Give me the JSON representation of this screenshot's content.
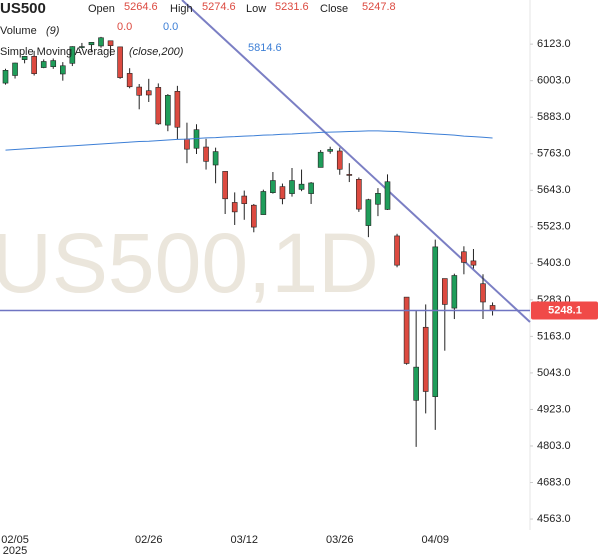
{
  "header": {
    "symbol": "US500",
    "labels": [
      "Open",
      "High",
      "Low",
      "Close"
    ],
    "volume": {
      "label": "Volume",
      "params": "(9)",
      "values": [
        "0.0",
        "0.0"
      ]
    },
    "sma": {
      "label": "Simple Moving Average",
      "params": "(close,200)"
    },
    "watermark": "US500,1D"
  },
  "chart_data": {
    "type": "candlestick",
    "categories": [
      null,
      "02/05",
      null,
      null,
      null,
      null,
      null,
      null,
      null,
      null,
      null,
      null,
      null,
      null,
      null,
      "02/26",
      null,
      null,
      null,
      null,
      null,
      null,
      null,
      null,
      null,
      "03/12",
      null,
      null,
      null,
      null,
      null,
      null,
      null,
      null,
      null,
      "03/26",
      null,
      null,
      null,
      null,
      null,
      null,
      null,
      null,
      null,
      "04/09",
      null,
      null,
      null,
      null,
      null,
      null
    ],
    "year_label": "2025",
    "open": [
      5995,
      6020,
      6072,
      6083,
      6046,
      6049,
      6025,
      6060,
      6115,
      6121,
      6117,
      6134,
      6114,
      6027,
      5982,
      5970,
      5981,
      5857,
      5968,
      5811,
      5781,
      5785,
      5726,
      5705,
      5603,
      5624,
      5594,
      5563,
      5635,
      5655,
      5632,
      5646,
      5632,
      5718,
      5771,
      5772,
      5695,
      5679,
      5527,
      5597,
      5580,
      5493,
      5292,
      4953,
      5193,
      4965,
      5353,
      5256,
      5441,
      5411,
      5336,
      5264.6
    ],
    "high": [
      6042,
      6062,
      6084,
      6101,
      6073,
      6076,
      6064,
      6116,
      6127,
      6129,
      6147,
      6134,
      6114,
      6044,
      5992,
      6009,
      5994,
      5959,
      5986,
      5865,
      5860,
      5812,
      5783,
      5705,
      5636,
      5642,
      5598,
      5645,
      5703,
      5665,
      5716,
      5711,
      5670,
      5775,
      5786,
      5783,
      5732,
      5685,
      5615,
      5650,
      5695,
      5500,
      5292,
      5247,
      5268,
      5481,
      5353,
      5369,
      5459,
      5450,
      5367,
      5274.6
    ],
    "low": [
      5990,
      6010,
      6060,
      6020,
      6044,
      6042,
      6003,
      6051,
      6107,
      6099,
      6111,
      6084,
      6009,
      5978,
      5909,
      5933,
      5858,
      5837,
      5810,
      5732,
      5762,
      5711,
      5666,
      5565,
      5529,
      5546,
      5505,
      5563,
      5632,
      5597,
      5622,
      5640,
      5598,
      5718,
      5763,
      5694,
      5670,
      5572,
      5489,
      5558,
      5578,
      5390,
      5070,
      4800,
      4910,
      4856,
      5116,
      5220,
      5367,
      5386,
      5220,
      5231.6
    ],
    "close": [
      6037,
      6061,
      6083,
      6026,
      6066,
      6069,
      6052,
      6115,
      6115,
      6129,
      6144,
      6118,
      6013,
      5983,
      5955,
      5956,
      5861,
      5955,
      5850,
      5778,
      5842,
      5738,
      5770,
      5615,
      5572,
      5599,
      5522,
      5639,
      5675,
      5615,
      5675,
      5663,
      5667,
      5768,
      5777,
      5712,
      5693,
      5581,
      5612,
      5633,
      5671,
      5397,
      5074,
      5062,
      4982,
      5457,
      5268,
      5363,
      5406,
      5397,
      5276,
      5247.8
    ],
    "up_color": "#1f9d5a",
    "down_color": "#dc4a40",
    "overlay": {
      "color": "#3d7fd6",
      "values": [
        5775,
        5777,
        5779,
        5781,
        5783,
        5785,
        5787,
        5789,
        5791,
        5793,
        5795,
        5797,
        5799,
        5801,
        5803,
        5804,
        5806,
        5808,
        5810,
        5811,
        5813,
        5815,
        5816,
        5818,
        5819,
        5821,
        5822,
        5824,
        5825,
        5827,
        5828,
        5830,
        5831,
        5833,
        5834,
        5835,
        5836,
        5837,
        5838,
        5838,
        5837,
        5836,
        5834,
        5832,
        5830,
        5828,
        5826,
        5824,
        5821,
        5819,
        5817,
        5814.6
      ]
    },
    "last_price": 5248.1,
    "last_price_color": "#f04a48",
    "price_line_color": "#6f74c2",
    "ylim": [
      4527,
      6268
    ],
    "yticks": [
      {
        "value": 6123,
        "label": "6123.0"
      },
      {
        "value": 6003,
        "label": "6003.0"
      },
      {
        "value": 5883,
        "label": "5883.0"
      },
      {
        "value": 5763,
        "label": "5763.0"
      },
      {
        "value": 5643,
        "label": "5643.0"
      },
      {
        "value": 5523,
        "label": "5523.0"
      },
      {
        "value": 5403,
        "label": "5403.0"
      },
      {
        "value": 5283,
        "label": "5283.0"
      },
      {
        "value": 5163,
        "label": "5163.0"
      },
      {
        "value": 5043,
        "label": "5043.0"
      },
      {
        "value": 4923,
        "label": "4923.0"
      },
      {
        "value": 4803,
        "label": "4803.0"
      },
      {
        "value": 4683,
        "label": "4683.0"
      },
      {
        "value": 4563,
        "label": "4563.0"
      }
    ]
  }
}
